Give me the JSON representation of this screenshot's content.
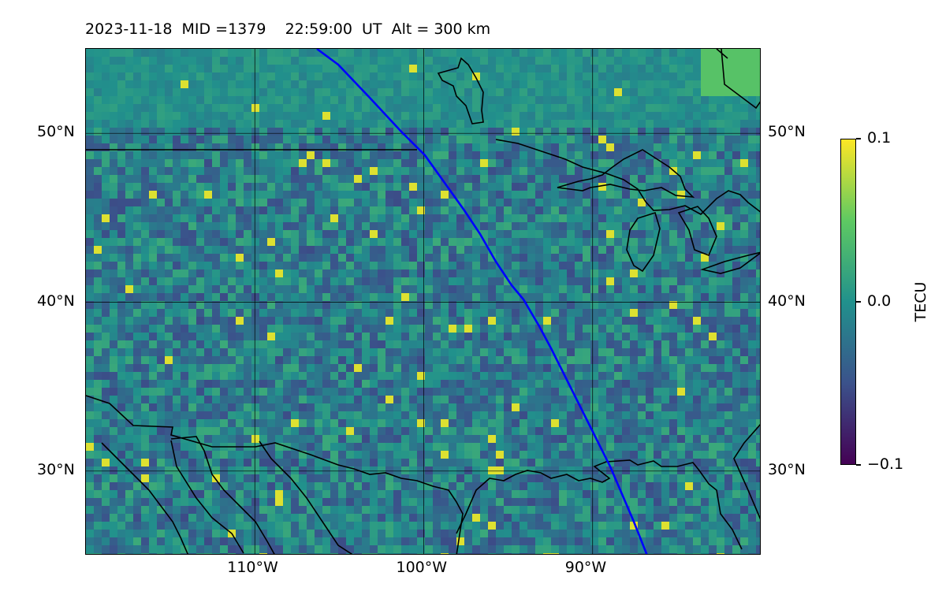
{
  "title": "2023-11-18  MID =1379    22:59:00  UT  Alt = 300 km",
  "map": {
    "lon_range": [
      -120,
      -80
    ],
    "lat_range": [
      25,
      55
    ],
    "lon_ticks": [
      {
        "value": -110,
        "label": "110°W"
      },
      {
        "value": -100,
        "label": "100°W"
      },
      {
        "value": -90,
        "label": "90°W"
      }
    ],
    "lat_ticks": [
      {
        "value": 30,
        "label": "30°N"
      },
      {
        "value": 40,
        "label": "40°N"
      },
      {
        "value": 50,
        "label": "50°N"
      }
    ],
    "track_color": "#0000ff",
    "border_color": "#000000",
    "colormap": "viridis"
  },
  "colorbar": {
    "label": "TECU",
    "min": -0.1,
    "max": 0.1,
    "ticks": [
      {
        "value": 0.1,
        "label": "0.1"
      },
      {
        "value": 0.0,
        "label": "0.0"
      },
      {
        "value": -0.1,
        "label": "−0.1"
      }
    ]
  }
}
